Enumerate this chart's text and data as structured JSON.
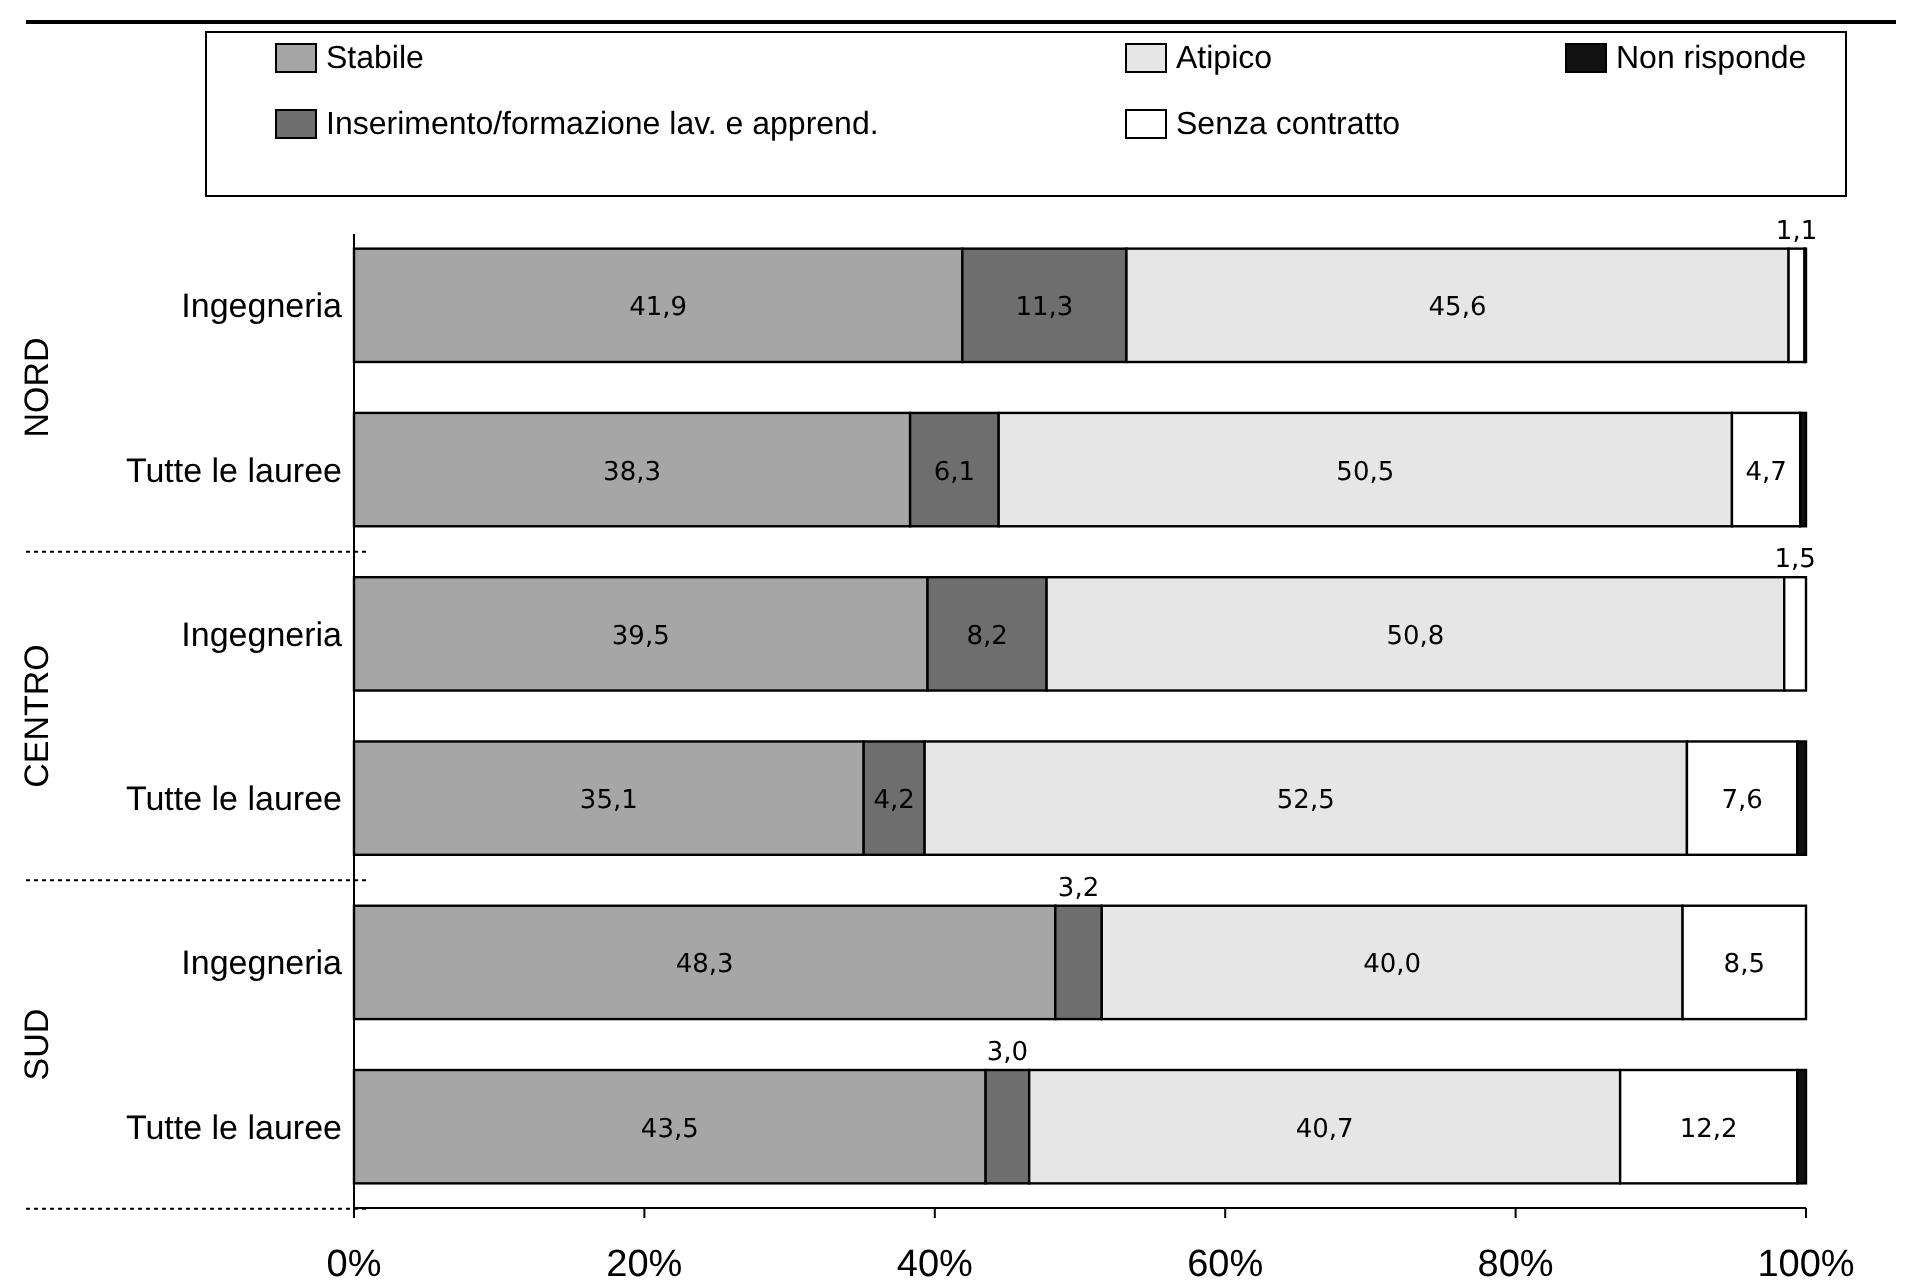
{
  "chart_data": {
    "type": "bar",
    "orientation": "horizontal",
    "stacked": true,
    "categories": [
      "Ingegneria",
      "Tutte le lauree",
      "Ingegneria",
      "Tutte le lauree",
      "Ingegneria",
      "Tutte le lauree"
    ],
    "annotations": [
      "NORD",
      "CENTRO",
      "SUD"
    ],
    "series": [
      {
        "name": "Stabile",
        "color": "#a6a6a6",
        "values": [
          41.9,
          38.3,
          39.5,
          35.1,
          48.3,
          43.5
        ],
        "value_labels": [
          "41,9",
          "38,3",
          "39,5",
          "35,1",
          "48,3",
          "43,5"
        ]
      },
      {
        "name": "Inserimento/formazione lav. e apprend.",
        "color": "#6e6e6e",
        "values": [
          11.3,
          6.1,
          8.2,
          4.2,
          3.2,
          3.0
        ],
        "value_labels": [
          "11,3",
          "6,1",
          "8,2",
          "4,2",
          "3,2",
          "3,0"
        ]
      },
      {
        "name": "Atipico",
        "color": "#e6e6e6",
        "values": [
          45.6,
          50.5,
          50.8,
          52.5,
          40.0,
          40.7
        ],
        "value_labels": [
          "45,6",
          "50,5",
          "50,8",
          "52,5",
          "40,0",
          "40,7"
        ]
      },
      {
        "name": "Senza contratto",
        "color": "#ffffff",
        "values": [
          1.1,
          4.7,
          1.5,
          7.6,
          8.5,
          12.2
        ],
        "value_labels": [
          "1,1",
          "4,7",
          "1,5",
          "7,6",
          "8,5",
          "12,2"
        ]
      },
      {
        "name": "Non risponde",
        "color": "#111111",
        "values": [
          0.1,
          0.4,
          0,
          0.6,
          0,
          0.6
        ],
        "value_labels": [
          null,
          null,
          null,
          null,
          null,
          null
        ]
      }
    ],
    "xlim": [
      0,
      100
    ],
    "xticks": [
      {
        "value": 0,
        "label": "0%"
      },
      {
        "value": 20,
        "label": "20%"
      },
      {
        "value": 40,
        "label": "40%"
      },
      {
        "value": 60,
        "label": "60%"
      },
      {
        "value": 80,
        "label": "80%"
      },
      {
        "value": 100,
        "label": "100%"
      }
    ],
    "legend": "top",
    "grid": false
  }
}
